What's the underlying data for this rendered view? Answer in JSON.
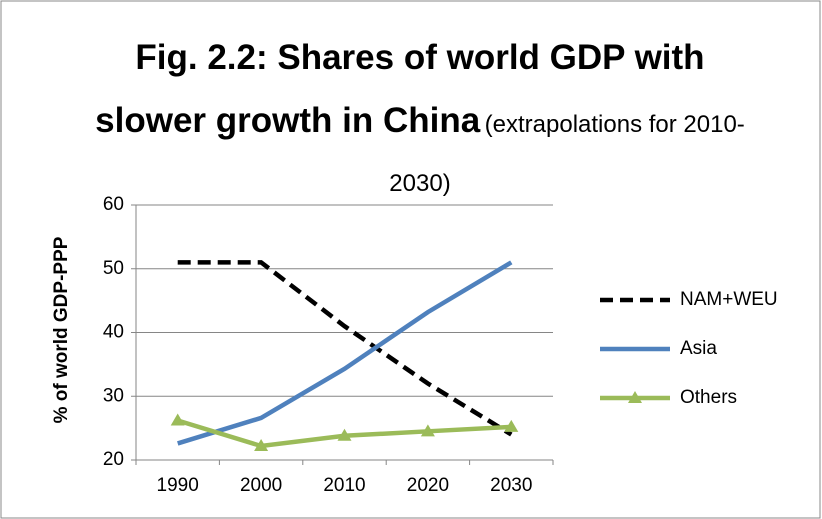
{
  "chart_data": {
    "type": "line",
    "title": "Fig. 2.2: Shares of world GDP with slower growth in China",
    "subtitle": "(extrapolations for 2010-2030)",
    "y_label": "% of world GDP-PPP",
    "categories": [
      "1990",
      "2000",
      "2010",
      "2020",
      "2030"
    ],
    "series": [
      {
        "name": "NAM+WEU",
        "color": "#000000",
        "dash": true,
        "marker": null,
        "values": [
          51,
          51,
          41,
          32,
          24
        ]
      },
      {
        "name": "Asia",
        "color": "#4f81bd",
        "dash": false,
        "marker": null,
        "values": [
          22.6,
          26.6,
          34.3,
          43.2,
          51
        ]
      },
      {
        "name": "Others",
        "color": "#9bbb59",
        "dash": false,
        "marker": "triangle",
        "values": [
          26.2,
          22.2,
          23.8,
          24.5,
          25.2
        ]
      }
    ],
    "ylim": [
      20,
      60
    ],
    "yticks": [
      20,
      30,
      40,
      50,
      60
    ],
    "grid": true,
    "legend": "right"
  }
}
